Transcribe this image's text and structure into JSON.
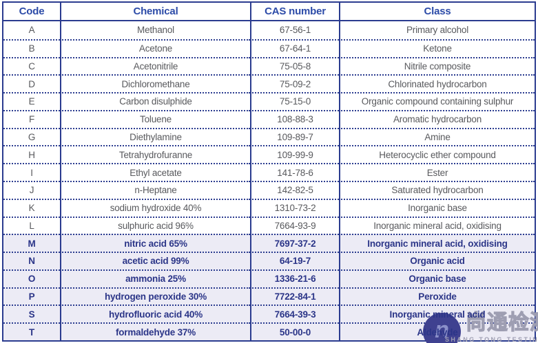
{
  "table": {
    "headers": [
      "Code",
      "Chemical",
      "CAS number",
      "Class"
    ],
    "rows": [
      {
        "code": "A",
        "chemical": "Methanol",
        "cas": "67-56-1",
        "class": "Primary alcohol",
        "highlight": false
      },
      {
        "code": "B",
        "chemical": "Acetone",
        "cas": "67-64-1",
        "class": "Ketone",
        "highlight": false
      },
      {
        "code": "C",
        "chemical": "Acetonitrile",
        "cas": "75-05-8",
        "class": "Nitrile composite",
        "highlight": false
      },
      {
        "code": "D",
        "chemical": "Dichloromethane",
        "cas": "75-09-2",
        "class": "Chlorinated hydrocarbon",
        "highlight": false
      },
      {
        "code": "E",
        "chemical": "Carbon disulphide",
        "cas": "75-15-0",
        "class": "Organic compound containing sulphur",
        "highlight": false
      },
      {
        "code": "F",
        "chemical": "Toluene",
        "cas": "108-88-3",
        "class": "Aromatic hydrocarbon",
        "highlight": false
      },
      {
        "code": "G",
        "chemical": "Diethylamine",
        "cas": "109-89-7",
        "class": "Amine",
        "highlight": false
      },
      {
        "code": "H",
        "chemical": "Tetrahydrofuranne",
        "cas": "109-99-9",
        "class": "Heterocyclic ether compound",
        "highlight": false
      },
      {
        "code": "I",
        "chemical": "Ethyl acetate",
        "cas": "141-78-6",
        "class": "Ester",
        "highlight": false
      },
      {
        "code": "J",
        "chemical": "n-Heptane",
        "cas": "142-82-5",
        "class": "Saturated hydrocarbon",
        "highlight": false
      },
      {
        "code": "K",
        "chemical": "sodium hydroxide 40%",
        "cas": "1310-73-2",
        "class": "Inorganic base",
        "highlight": false
      },
      {
        "code": "L",
        "chemical": "sulphuric acid 96%",
        "cas": "7664-93-9",
        "class": "Inorganic mineral acid, oxidising",
        "highlight": false
      },
      {
        "code": "M",
        "chemical": "nitric acid 65%",
        "cas": "7697-37-2",
        "class": "Inorganic mineral acid, oxidising",
        "highlight": true
      },
      {
        "code": "N",
        "chemical": "acetic acid 99%",
        "cas": "64-19-7",
        "class": "Organic acid",
        "highlight": true
      },
      {
        "code": "O",
        "chemical": "ammonia 25%",
        "cas": "1336-21-6",
        "class": "Organic base",
        "highlight": true
      },
      {
        "code": "P",
        "chemical": "hydrogen peroxide 30%",
        "cas": "7722-84-1",
        "class": "Peroxide",
        "highlight": true
      },
      {
        "code": "S",
        "chemical": "hydrofluoric acid 40%",
        "cas": "7664-39-3",
        "class": "Inorganic mineral acid",
        "highlight": true
      },
      {
        "code": "T",
        "chemical": "formaldehyde 37%",
        "cas": "50-00-0",
        "class": "Aldehyde",
        "highlight": true
      }
    ]
  },
  "chart_data": {
    "type": "table",
    "title": "",
    "columns": [
      "Code",
      "Chemical",
      "CAS number",
      "Class"
    ],
    "rows": [
      [
        "A",
        "Methanol",
        "67-56-1",
        "Primary alcohol"
      ],
      [
        "B",
        "Acetone",
        "67-64-1",
        "Ketone"
      ],
      [
        "C",
        "Acetonitrile",
        "75-05-8",
        "Nitrile composite"
      ],
      [
        "D",
        "Dichloromethane",
        "75-09-2",
        "Chlorinated hydrocarbon"
      ],
      [
        "E",
        "Carbon disulphide",
        "75-15-0",
        "Organic compound containing sulphur"
      ],
      [
        "F",
        "Toluene",
        "108-88-3",
        "Aromatic hydrocarbon"
      ],
      [
        "G",
        "Diethylamine",
        "109-89-7",
        "Amine"
      ],
      [
        "H",
        "Tetrahydrofuranne",
        "109-99-9",
        "Heterocyclic ether compound"
      ],
      [
        "I",
        "Ethyl acetate",
        "141-78-6",
        "Ester"
      ],
      [
        "J",
        "n-Heptane",
        "142-82-5",
        "Saturated hydrocarbon"
      ],
      [
        "K",
        "sodium hydroxide 40%",
        "1310-73-2",
        "Inorganic base"
      ],
      [
        "L",
        "sulphuric acid 96%",
        "7664-93-9",
        "Inorganic mineral acid, oxidising"
      ],
      [
        "M",
        "nitric acid 65%",
        "7697-37-2",
        "Inorganic mineral acid, oxidising"
      ],
      [
        "N",
        "acetic acid 99%",
        "64-19-7",
        "Organic acid"
      ],
      [
        "O",
        "ammonia 25%",
        "1336-21-6",
        "Organic base"
      ],
      [
        "P",
        "hydrogen peroxide 30%",
        "7722-84-1",
        "Peroxide"
      ],
      [
        "S",
        "hydrofluoric acid 40%",
        "7664-39-3",
        "Inorganic mineral acid"
      ],
      [
        "T",
        "formaldehyde 37%",
        "50-00-0",
        "Aldehyde"
      ]
    ]
  },
  "watermark": {
    "logo_glyph": "n",
    "cjk_text": "尚通检测",
    "latin_text": "SHANG TONG TESTING"
  },
  "colors": {
    "border_navy": "#2a3b8f",
    "header_blue": "#2c4ba8",
    "body_gray": "#58595d",
    "highlight_text_navy": "#2b3588",
    "highlight_bg": "#ecebf5",
    "watermark_gray": "#9e9eb2",
    "watermark_circle": "#3f4190"
  }
}
